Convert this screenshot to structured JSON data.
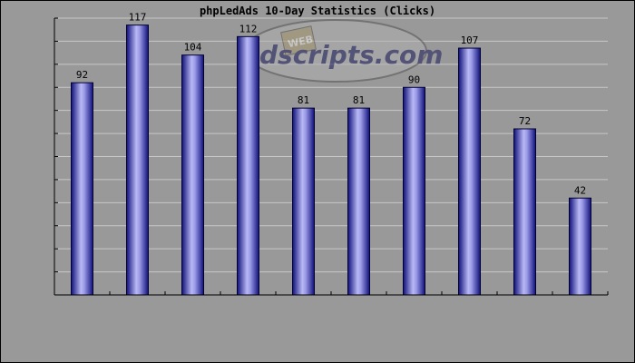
{
  "chart_data": {
    "type": "bar",
    "title": "phpLedAds 10-Day Statistics (Clicks)",
    "xlabel": "",
    "ylabel": "",
    "categories": [
      "",
      "",
      "",
      "",
      "",
      "",
      "",
      "",
      "",
      ""
    ],
    "values": [
      92,
      117,
      104,
      112,
      81,
      81,
      90,
      107,
      72,
      42
    ],
    "ylim": [
      0,
      120
    ],
    "grid": true,
    "legend": "none"
  },
  "watermark": {
    "badge": "WEB",
    "text": "dscripts.com"
  },
  "colors": {
    "background": "#999999",
    "grid": "#c8c8c8",
    "axis": "#000000",
    "bar_edge": "#000033",
    "bar_dark": "#1a1a8a",
    "bar_light": "#c8c8ff"
  }
}
